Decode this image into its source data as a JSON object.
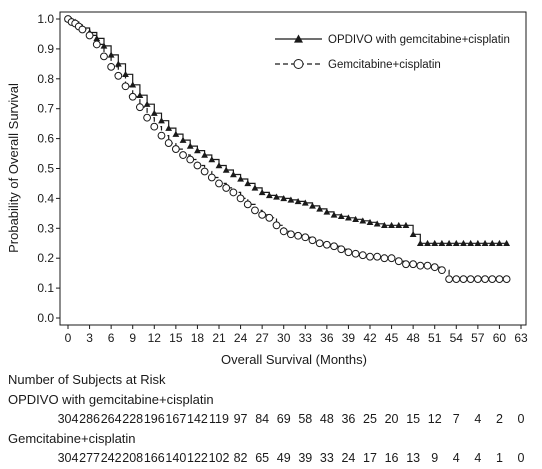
{
  "chart_data": {
    "type": "line",
    "subtype": "kaplan-meier",
    "title": "",
    "xlabel": "Overall Survival (Months)",
    "ylabel": "Probability of Overall Survival",
    "xlim": [
      0,
      63
    ],
    "ylim": [
      0,
      1
    ],
    "xticks": [
      0,
      3,
      6,
      9,
      12,
      15,
      18,
      21,
      24,
      27,
      30,
      33,
      36,
      39,
      42,
      45,
      48,
      51,
      54,
      57,
      60,
      63
    ],
    "yticks": [
      0.0,
      0.1,
      0.2,
      0.3,
      0.4,
      0.5,
      0.6,
      0.7,
      0.8,
      0.9,
      1.0
    ],
    "ytick_labels": [
      "0.0",
      "0.1",
      "0.2",
      "0.3",
      "0.4",
      "0.5",
      "0.6",
      "0.7",
      "0.8",
      "0.9",
      "1.0"
    ],
    "grid": false,
    "legend_position": "top-right",
    "series": [
      {
        "name": "OPDIVO with gemcitabine+cisplatin",
        "color": "#1a1a1a",
        "line_style": "solid",
        "marker": "filled-triangle",
        "x": [
          0,
          0.5,
          1,
          1.5,
          2,
          3,
          4,
          5,
          6,
          7,
          8,
          9,
          10,
          11,
          12,
          13,
          14,
          15,
          16,
          17,
          18,
          19,
          20,
          21,
          22,
          23,
          24,
          25,
          26,
          27,
          28,
          29,
          30,
          31,
          32,
          33,
          34,
          35,
          36,
          37,
          38,
          39,
          40,
          41,
          42,
          43,
          44,
          45,
          46,
          47,
          48,
          49,
          50,
          51,
          52,
          53,
          54,
          55,
          56,
          57,
          58,
          59,
          60,
          61
        ],
        "y": [
          1.0,
          0.995,
          0.99,
          0.98,
          0.97,
          0.955,
          0.935,
          0.91,
          0.88,
          0.85,
          0.815,
          0.78,
          0.745,
          0.715,
          0.685,
          0.66,
          0.635,
          0.615,
          0.595,
          0.575,
          0.56,
          0.545,
          0.53,
          0.51,
          0.495,
          0.48,
          0.465,
          0.45,
          0.435,
          0.42,
          0.41,
          0.405,
          0.4,
          0.395,
          0.39,
          0.385,
          0.375,
          0.365,
          0.355,
          0.345,
          0.34,
          0.335,
          0.33,
          0.325,
          0.32,
          0.315,
          0.31,
          0.31,
          0.31,
          0.31,
          0.28,
          0.25,
          0.25,
          0.25,
          0.25,
          0.25,
          0.25,
          0.25,
          0.25,
          0.25,
          0.25,
          0.25,
          0.25,
          0.25
        ]
      },
      {
        "name": "Gemcitabine+cisplatin",
        "color": "#1a1a1a",
        "line_style": "dashed",
        "marker": "open-circle",
        "x": [
          0,
          0.5,
          1,
          1.5,
          2,
          3,
          4,
          5,
          6,
          7,
          8,
          9,
          10,
          11,
          12,
          13,
          14,
          15,
          16,
          17,
          18,
          19,
          20,
          21,
          22,
          23,
          24,
          25,
          26,
          27,
          28,
          29,
          30,
          31,
          32,
          33,
          34,
          35,
          36,
          37,
          38,
          39,
          40,
          41,
          42,
          43,
          44,
          45,
          46,
          47,
          48,
          49,
          50,
          51,
          52,
          53,
          54,
          55,
          56,
          57,
          58,
          59,
          60,
          61
        ],
        "y": [
          1.0,
          0.99,
          0.985,
          0.975,
          0.965,
          0.945,
          0.915,
          0.875,
          0.84,
          0.81,
          0.775,
          0.74,
          0.705,
          0.67,
          0.64,
          0.61,
          0.585,
          0.565,
          0.545,
          0.53,
          0.51,
          0.49,
          0.47,
          0.45,
          0.435,
          0.42,
          0.4,
          0.38,
          0.36,
          0.345,
          0.335,
          0.31,
          0.29,
          0.28,
          0.275,
          0.27,
          0.26,
          0.25,
          0.245,
          0.24,
          0.23,
          0.22,
          0.215,
          0.21,
          0.205,
          0.205,
          0.2,
          0.2,
          0.19,
          0.18,
          0.18,
          0.175,
          0.175,
          0.17,
          0.16,
          0.13,
          0.13,
          0.13,
          0.13,
          0.13,
          0.13,
          0.13,
          0.13,
          0.13
        ]
      }
    ]
  },
  "risk_table": {
    "heading": "Number of Subjects at Risk",
    "rows": [
      {
        "label": "OPDIVO with gemcitabine+cisplatin",
        "values": [
          "304",
          "286",
          "264",
          "228",
          "196",
          "167",
          "142",
          "119",
          "97",
          "84",
          "69",
          "58",
          "48",
          "36",
          "25",
          "20",
          "15",
          "12",
          "7",
          "4",
          "2",
          "0"
        ]
      },
      {
        "label": "Gemcitabine+cisplatin",
        "values": [
          "304",
          "277",
          "242",
          "208",
          "166",
          "140",
          "122",
          "102",
          "82",
          "65",
          "49",
          "39",
          "33",
          "24",
          "17",
          "16",
          "13",
          "9",
          "4",
          "4",
          "1",
          "0"
        ]
      }
    ]
  }
}
